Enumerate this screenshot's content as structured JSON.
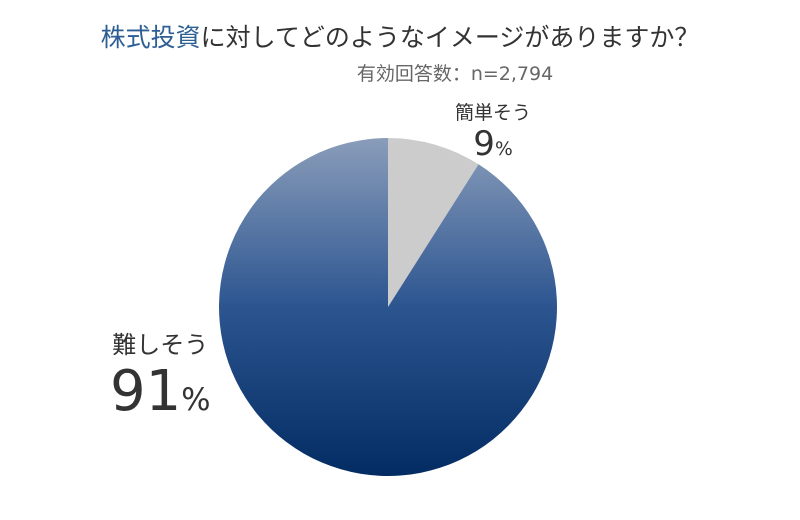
{
  "title": {
    "highlight": "株式投資",
    "rest": "に対してどのようなイメージがありますか？"
  },
  "subtitle": "有効回答数：n=2,794",
  "chart_data": {
    "type": "pie",
    "title": "株式投資に対してどのようなイメージがありますか？",
    "subtitle": "有効回答数：n=2,794",
    "categories": [
      "簡単そう",
      "難しそう"
    ],
    "values": [
      9,
      91
    ],
    "unit": "%",
    "colors": [
      "#cccccc",
      "gradient #8a9dba → #032c63"
    ],
    "start": "top, clockwise",
    "labels": [
      {
        "name": "簡単そう",
        "value": "9",
        "sign": "%"
      },
      {
        "name": "難しそう",
        "value": "91",
        "sign": "%"
      }
    ]
  }
}
